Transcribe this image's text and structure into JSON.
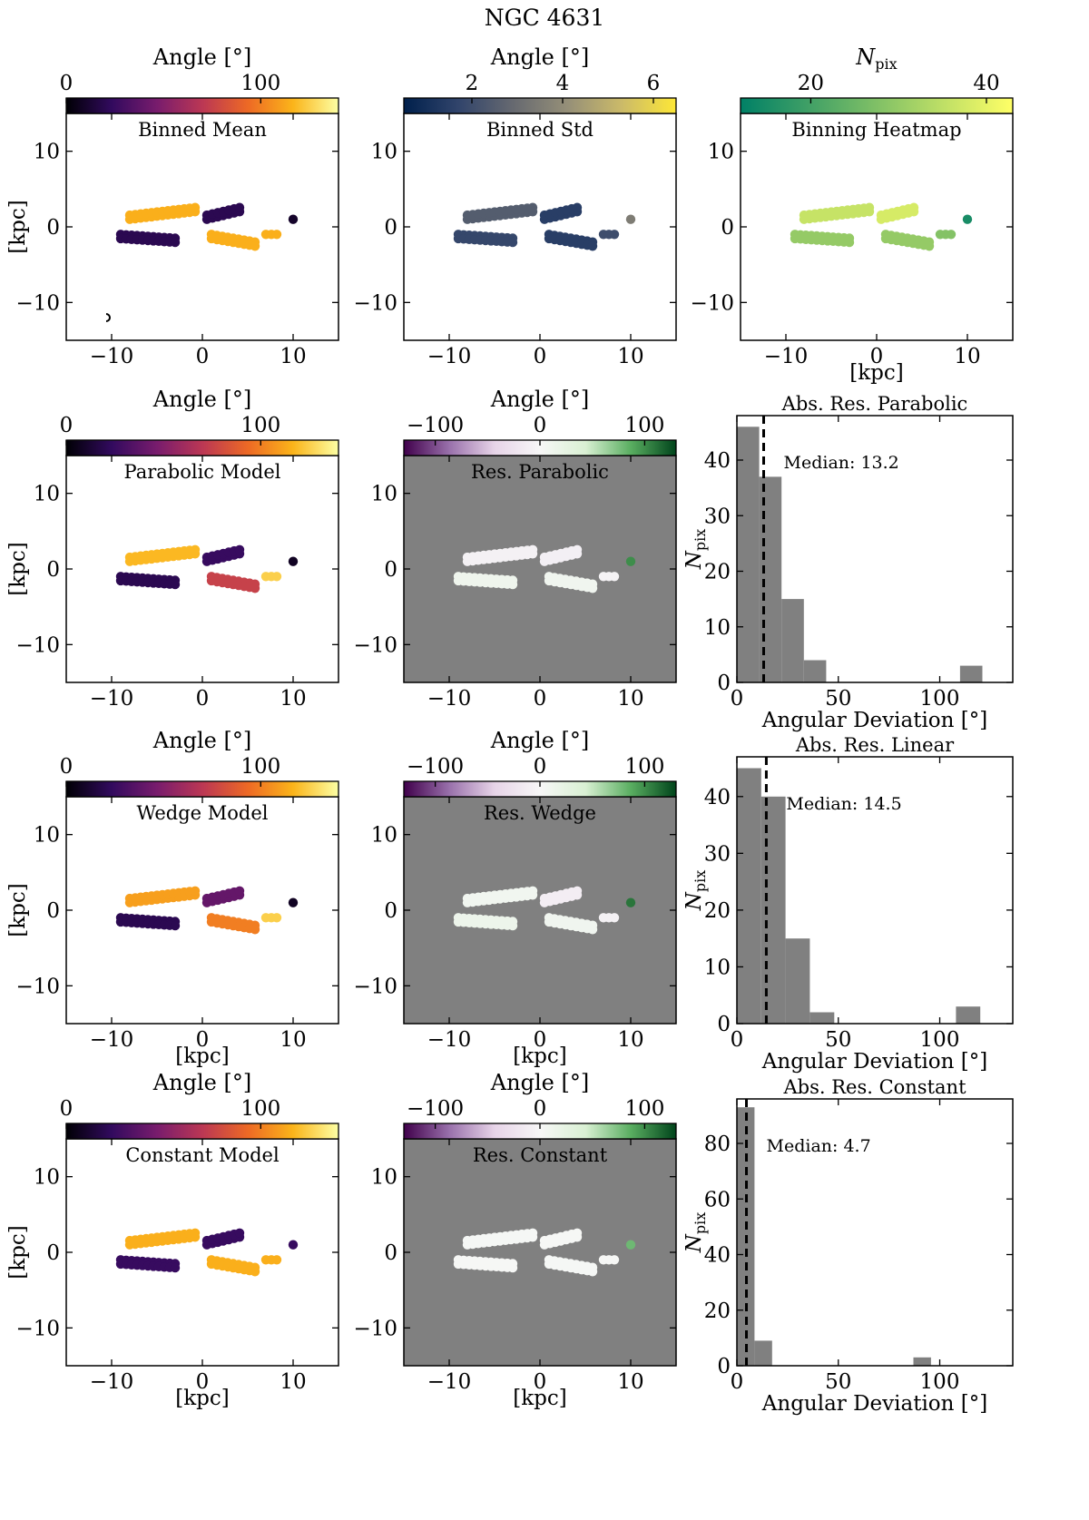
{
  "figure": {
    "title": "NGC 4631"
  },
  "chart_data": {
    "type": "multi-panel",
    "map_axes": {
      "xlim": [
        -15,
        15
      ],
      "ylim": [
        -15,
        15
      ],
      "xticks": [
        -10,
        0,
        10
      ],
      "yticks": [
        -10,
        0,
        10
      ],
      "tick_labels": [
        "−10",
        "0",
        "10"
      ],
      "unit_label": "[kpc]"
    },
    "clusters": [
      {
        "name": "upper-left",
        "x": [
          -8,
          -1
        ],
        "y": [
          1,
          2
        ],
        "rows": 2
      },
      {
        "name": "upper-mid",
        "x": [
          0.5,
          4
        ],
        "y": [
          1,
          2
        ],
        "rows": 2
      },
      {
        "name": "lower-left",
        "x": [
          -9,
          -3
        ],
        "y": [
          -1,
          -1.5
        ],
        "rows": 2
      },
      {
        "name": "lower-mid",
        "x": [
          1,
          6
        ],
        "y": [
          -1,
          -2
        ],
        "rows": 2
      },
      {
        "name": "right-small",
        "x": [
          7,
          8
        ],
        "y": [
          -1,
          -1
        ],
        "rows": 1
      },
      {
        "name": "far-right",
        "x": [
          10,
          10
        ],
        "y": [
          1,
          1
        ],
        "rows": 1
      }
    ],
    "maps": [
      {
        "id": "binned-mean",
        "title": "Binned Mean",
        "colorbar_label": "Angle [°]",
        "cmap": "inferno",
        "vmin": 0,
        "vmax": 140,
        "ticks": [
          "0",
          "100"
        ],
        "tick_values": [
          0,
          100
        ],
        "background": "white",
        "cluster_values": [
          115,
          20,
          20,
          115,
          115,
          10
        ],
        "xlabel": "",
        "ylabel": "[kpc]"
      },
      {
        "id": "binned-std",
        "title": "Binned Std",
        "colorbar_label": "Angle [°]",
        "cmap": "cividis",
        "vmin": 0.5,
        "vmax": 6.5,
        "ticks": [
          "2",
          "4",
          "6"
        ],
        "tick_values": [
          2,
          4,
          6
        ],
        "background": "white",
        "cluster_values": [
          2.5,
          1.5,
          1.8,
          1.5,
          2.0,
          3.5
        ],
        "xlabel": "",
        "ylabel": ""
      },
      {
        "id": "binning-heatmap",
        "title": "Binning Heatmap",
        "colorbar_label": "N",
        "colorbar_label_sub": "pix",
        "cmap": "summer",
        "vmin": 12,
        "vmax": 43,
        "ticks": [
          "20",
          "40"
        ],
        "tick_values": [
          20,
          40
        ],
        "background": "white",
        "cluster_values": [
          36,
          38,
          30,
          30,
          28,
          15
        ],
        "xlabel": "[kpc]",
        "ylabel": ""
      },
      {
        "id": "parabolic-model",
        "title": "Parabolic Model",
        "colorbar_label": "Angle [°]",
        "cmap": "inferno",
        "vmin": 0,
        "vmax": 140,
        "ticks": [
          "0",
          "100"
        ],
        "tick_values": [
          0,
          100
        ],
        "background": "white",
        "cluster_values": [
          118,
          25,
          20,
          75,
          125,
          8
        ],
        "xlabel": "",
        "ylabel": "[kpc]"
      },
      {
        "id": "res-parabolic",
        "title": "Res. Parabolic",
        "colorbar_label": "Angle [°]",
        "cmap": "PRGn",
        "vmin": -130,
        "vmax": 130,
        "ticks": [
          "−100",
          "0",
          "100"
        ],
        "tick_values": [
          -100,
          0,
          100
        ],
        "background": "gray",
        "cluster_values": [
          -8,
          -10,
          12,
          10,
          -5,
          100
        ],
        "xlabel": "",
        "ylabel": ""
      },
      {
        "id": "wedge-model",
        "title": "Wedge Model",
        "colorbar_label": "Angle [°]",
        "cmap": "inferno",
        "vmin": 0,
        "vmax": 140,
        "ticks": [
          "0",
          "100"
        ],
        "tick_values": [
          0,
          100
        ],
        "background": "white",
        "cluster_values": [
          110,
          40,
          20,
          100,
          125,
          8
        ],
        "xlabel": "[kpc]",
        "ylabel": "[kpc]"
      },
      {
        "id": "res-wedge",
        "title": "Res. Wedge",
        "colorbar_label": "Angle [°]",
        "cmap": "PRGn",
        "vmin": -130,
        "vmax": 130,
        "ticks": [
          "−100",
          "0",
          "100"
        ],
        "tick_values": [
          -100,
          0,
          100
        ],
        "background": "gray",
        "cluster_values": [
          8,
          -12,
          15,
          10,
          -8,
          110
        ],
        "xlabel": "[kpc]",
        "ylabel": ""
      },
      {
        "id": "constant-model",
        "title": "Constant Model",
        "colorbar_label": "Angle [°]",
        "cmap": "inferno",
        "vmin": 0,
        "vmax": 140,
        "ticks": [
          "0",
          "100"
        ],
        "tick_values": [
          0,
          100
        ],
        "background": "white",
        "cluster_values": [
          115,
          25,
          25,
          115,
          115,
          25
        ],
        "xlabel": "[kpc]",
        "ylabel": "[kpc]"
      },
      {
        "id": "res-constant",
        "title": "Res. Constant",
        "colorbar_label": "Angle [°]",
        "cmap": "PRGn",
        "vmin": -130,
        "vmax": 130,
        "ticks": [
          "−100",
          "0",
          "100"
        ],
        "tick_values": [
          -100,
          0,
          100
        ],
        "background": "gray",
        "cluster_values": [
          3,
          2,
          2,
          3,
          2,
          80
        ],
        "xlabel": "[kpc]",
        "ylabel": ""
      }
    ],
    "histograms": [
      {
        "id": "hist-parabolic",
        "type": "bar",
        "title": "Abs. Res. Parabolic",
        "annotation": "Median: 13.2",
        "median": 13.2,
        "bins": [
          [
            0,
            11
          ],
          [
            11,
            22
          ],
          [
            22,
            33
          ],
          [
            33,
            44
          ],
          [
            44,
            55
          ],
          [
            55,
            66
          ],
          [
            66,
            77
          ],
          [
            77,
            88
          ],
          [
            88,
            99
          ],
          [
            99,
            110
          ],
          [
            110,
            121
          ]
        ],
        "counts": [
          46,
          37,
          15,
          4,
          0,
          0,
          0,
          0,
          0,
          0,
          3
        ],
        "xlim": [
          0,
          136
        ],
        "ylim": [
          0,
          48
        ],
        "xticks": [
          0,
          50,
          100
        ],
        "yticks": [
          0,
          10,
          20,
          30,
          40
        ],
        "xlabel": "Angular Deviation [°]",
        "ylabel": "N",
        "ylabel_sub": "pix"
      },
      {
        "id": "hist-linear",
        "type": "bar",
        "title": "Abs. Res. Linear",
        "annotation": "Median: 14.5",
        "median": 14.5,
        "bins": [
          [
            0,
            12
          ],
          [
            12,
            24
          ],
          [
            24,
            36
          ],
          [
            36,
            48
          ],
          [
            48,
            60
          ],
          [
            60,
            72
          ],
          [
            72,
            84
          ],
          [
            84,
            96
          ],
          [
            96,
            108
          ],
          [
            108,
            120
          ]
        ],
        "counts": [
          45,
          40,
          15,
          2,
          0,
          0,
          0,
          0,
          0,
          3
        ],
        "xlim": [
          0,
          136
        ],
        "ylim": [
          0,
          47
        ],
        "xticks": [
          0,
          50,
          100
        ],
        "yticks": [
          0,
          10,
          20,
          30,
          40
        ],
        "xlabel": "Angular Deviation [°]",
        "ylabel": "N",
        "ylabel_sub": "pix"
      },
      {
        "id": "hist-constant",
        "type": "bar",
        "title": "Abs. Res. Constant",
        "annotation": "Median: 4.7",
        "median": 4.7,
        "bins": [
          [
            0,
            8.7
          ],
          [
            8.7,
            17.4
          ],
          [
            17.4,
            26.1
          ],
          [
            26.1,
            34.8
          ],
          [
            34.8,
            43.5
          ],
          [
            43.5,
            52.2
          ],
          [
            52.2,
            60.9
          ],
          [
            60.9,
            69.6
          ],
          [
            69.6,
            78.3
          ],
          [
            78.3,
            87
          ],
          [
            87,
            95.7
          ]
        ],
        "counts": [
          93,
          9,
          0,
          0,
          0,
          0,
          0,
          0,
          0,
          0,
          3
        ],
        "xlim": [
          0,
          136
        ],
        "ylim": [
          0,
          96
        ],
        "xticks": [
          0,
          50,
          100
        ],
        "yticks": [
          0,
          20,
          40,
          60,
          80
        ],
        "xlabel": "Angular Deviation [°]",
        "ylabel": "N",
        "ylabel_sub": "pix"
      }
    ]
  }
}
